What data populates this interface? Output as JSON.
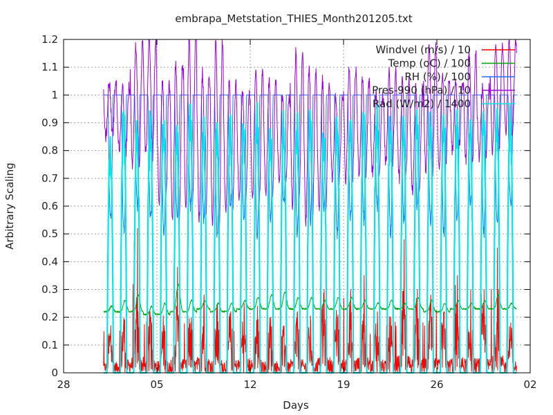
{
  "chart_data": {
    "type": "line",
    "title": "embrapa_Metstation_THIES_Month201205.txt",
    "xlabel": "Days",
    "ylabel": "Arbitrary Scaling",
    "xlim": [
      "2012-04-28",
      "2012-06-02"
    ],
    "ylim": [
      0,
      1.2
    ],
    "x_ticks": [
      "28",
      "05",
      "12",
      "19",
      "26",
      "02"
    ],
    "y_ticks": [
      "0",
      "0.1",
      "0.2",
      "0.3",
      "0.4",
      "0.5",
      "0.6",
      "0.7",
      "0.8",
      "0.9",
      "1",
      "1.1",
      "1.2"
    ],
    "grid": true,
    "legend_position": "top-right",
    "data_start": "2012-05-01",
    "data_end": "2012-05-31",
    "series": [
      {
        "name": "Windvel (m/s) / 10",
        "color": "#ff0000",
        "daily_peak": [
          0.17,
          0.18,
          0.52,
          0.2,
          0.15,
          0.38,
          0.18,
          0.28,
          0.25,
          0.22,
          0.25,
          0.24,
          0.2,
          0.17,
          0.22,
          0.18,
          0.3,
          0.2,
          0.3,
          0.35,
          0.22,
          0.2,
          0.48,
          0.3,
          0.28,
          0.22,
          0.35,
          0.3,
          0.3,
          0.45,
          0.18
        ],
        "daily_typical": [
          0.08,
          0.1,
          0.12,
          0.1,
          0.09,
          0.12,
          0.1,
          0.12,
          0.1,
          0.1,
          0.11,
          0.1,
          0.09,
          0.08,
          0.1,
          0.09,
          0.12,
          0.1,
          0.11,
          0.12,
          0.1,
          0.09,
          0.13,
          0.12,
          0.11,
          0.1,
          0.12,
          0.11,
          0.11,
          0.13,
          0.09
        ]
      },
      {
        "name": "Temp (oC) / 100",
        "color": "#00a000",
        "daily_max": [
          0.24,
          0.26,
          0.28,
          0.24,
          0.25,
          0.32,
          0.26,
          0.26,
          0.25,
          0.25,
          0.26,
          0.27,
          0.28,
          0.29,
          0.27,
          0.27,
          0.26,
          0.27,
          0.27,
          0.26,
          0.25,
          0.26,
          0.25,
          0.27,
          0.26,
          0.25,
          0.26,
          0.25,
          0.26,
          0.28,
          0.25
        ],
        "daily_min": [
          0.22,
          0.22,
          0.22,
          0.21,
          0.21,
          0.22,
          0.22,
          0.23,
          0.22,
          0.22,
          0.23,
          0.23,
          0.23,
          0.23,
          0.23,
          0.23,
          0.23,
          0.23,
          0.23,
          0.23,
          0.23,
          0.23,
          0.23,
          0.23,
          0.22,
          0.22,
          0.23,
          0.23,
          0.23,
          0.23,
          0.23
        ]
      },
      {
        "name": "RH (%) / 100",
        "color": "#1f6fff",
        "daily_max": [
          1,
          1,
          1,
          1,
          1,
          1,
          1,
          1,
          1,
          1,
          1,
          1,
          1,
          1,
          1,
          1,
          1,
          1,
          1,
          1,
          1,
          1,
          1,
          1,
          1,
          1,
          1,
          1,
          1,
          1,
          1
        ],
        "daily_min": [
          0.55,
          0.5,
          0.6,
          0.55,
          0.5,
          0.55,
          0.6,
          0.55,
          0.5,
          0.6,
          0.55,
          0.5,
          0.55,
          0.6,
          0.5,
          0.55,
          0.6,
          0.5,
          0.55,
          0.55,
          0.6,
          0.5,
          0.55,
          0.6,
          0.55,
          0.5,
          0.55,
          0.6,
          0.5,
          0.55,
          0.6
        ]
      },
      {
        "name": "Pres-990 (hPa) / 10",
        "color": "#9900dd",
        "daily_max": [
          1.05,
          1.03,
          1.18,
          1.2,
          1.05,
          1.12,
          1.22,
          1.08,
          1.2,
          1.05,
          1.02,
          1.1,
          1.05,
          1.0,
          1.15,
          1.1,
          1.05,
          1.0,
          1.1,
          1.05,
          1.0,
          1.08,
          1.05,
          1.02,
          1.18,
          1.06,
          1.05,
          1.15,
          1.02,
          1.18,
          1.2
        ],
        "daily_min": [
          0.85,
          0.8,
          0.75,
          0.78,
          0.62,
          0.55,
          0.6,
          0.55,
          0.52,
          0.58,
          0.62,
          0.62,
          0.65,
          0.7,
          0.6,
          0.55,
          0.6,
          0.7,
          0.7,
          0.72,
          0.72,
          0.75,
          0.7,
          0.65,
          0.72,
          0.75,
          0.8,
          0.76,
          0.78,
          0.8,
          0.85
        ]
      },
      {
        "name": "Rad (W/m2) / 1400",
        "color": "#00e5e5",
        "daily_peak": [
          0.85,
          0.98,
          0.92,
          0.95,
          0.97,
          0.9,
          0.98,
          0.96,
          0.93,
          0.95,
          0.97,
          0.98,
          0.92,
          0.95,
          0.96,
          0.98,
          0.9,
          0.97,
          0.95,
          0.96,
          0.98,
          0.97,
          0.93,
          0.95,
          0.96,
          0.98,
          0.97,
          0.95,
          0.96,
          0.98,
          0.97
        ]
      }
    ]
  }
}
